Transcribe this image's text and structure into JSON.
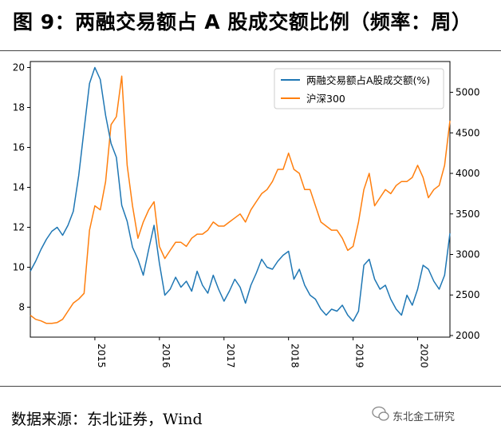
{
  "header": {
    "title": "图 9：两融交易额占 A 股成交额比例（频率：周）"
  },
  "footer": {
    "source": "数据来源：东北证券，Wind",
    "watermark": "东北金工研究"
  },
  "chart_data": {
    "type": "line",
    "x": [
      "2014-01",
      "2014-02",
      "2014-03",
      "2014-04",
      "2014-05",
      "2014-06",
      "2014-07",
      "2014-08",
      "2014-09",
      "2014-10",
      "2014-11",
      "2014-12",
      "2015-01",
      "2015-02",
      "2015-03",
      "2015-04",
      "2015-05",
      "2015-06",
      "2015-07",
      "2015-08",
      "2015-09",
      "2015-10",
      "2015-11",
      "2015-12",
      "2016-01",
      "2016-02",
      "2016-03",
      "2016-04",
      "2016-05",
      "2016-06",
      "2016-07",
      "2016-08",
      "2016-09",
      "2016-10",
      "2016-11",
      "2016-12",
      "2017-01",
      "2017-02",
      "2017-03",
      "2017-04",
      "2017-05",
      "2017-06",
      "2017-07",
      "2017-08",
      "2017-09",
      "2017-10",
      "2017-11",
      "2017-12",
      "2018-01",
      "2018-02",
      "2018-03",
      "2018-04",
      "2018-05",
      "2018-06",
      "2018-07",
      "2018-08",
      "2018-09",
      "2018-10",
      "2018-11",
      "2018-12",
      "2019-01",
      "2019-02",
      "2019-03",
      "2019-04",
      "2019-05",
      "2019-06",
      "2019-07",
      "2019-08",
      "2019-09",
      "2019-10",
      "2019-11",
      "2019-12",
      "2020-01",
      "2020-02",
      "2020-03",
      "2020-04",
      "2020-05",
      "2020-06",
      "2020-07"
    ],
    "series": [
      {
        "name": "两融交易额占A股成交额(%)",
        "axis": "left",
        "color": "#1f77b4",
        "values": [
          9.8,
          10.3,
          10.9,
          11.4,
          11.8,
          12.0,
          11.6,
          12.1,
          12.8,
          14.6,
          16.9,
          19.2,
          20.0,
          19.4,
          17.6,
          16.2,
          15.5,
          13.1,
          12.3,
          11.0,
          10.4,
          9.6,
          10.9,
          12.1,
          10.2,
          8.6,
          8.9,
          9.5,
          9.0,
          9.3,
          8.8,
          9.8,
          9.1,
          8.7,
          9.6,
          8.9,
          8.3,
          8.8,
          9.4,
          9.0,
          8.2,
          9.1,
          9.7,
          10.4,
          10.0,
          9.9,
          10.3,
          10.6,
          10.8,
          9.4,
          9.9,
          9.1,
          8.6,
          8.4,
          7.9,
          7.6,
          7.9,
          7.8,
          8.1,
          7.6,
          7.3,
          7.8,
          10.1,
          10.4,
          9.4,
          8.9,
          9.1,
          8.4,
          7.9,
          7.6,
          8.6,
          8.1,
          8.9,
          10.1,
          9.9,
          9.3,
          8.9,
          9.6,
          11.7
        ]
      },
      {
        "name": "沪深300",
        "axis": "right",
        "color": "#ff7f0e",
        "values": [
          2250,
          2200,
          2180,
          2150,
          2150,
          2160,
          2200,
          2300,
          2400,
          2450,
          2520,
          3300,
          3600,
          3550,
          3900,
          4600,
          4700,
          5200,
          4100,
          3600,
          3200,
          3400,
          3550,
          3650,
          3100,
          2950,
          3050,
          3150,
          3150,
          3100,
          3200,
          3250,
          3250,
          3300,
          3400,
          3350,
          3350,
          3400,
          3450,
          3500,
          3400,
          3550,
          3650,
          3750,
          3800,
          3900,
          4050,
          4050,
          4250,
          4050,
          4000,
          3800,
          3800,
          3600,
          3400,
          3350,
          3300,
          3300,
          3200,
          3050,
          3100,
          3400,
          3800,
          4000,
          3600,
          3700,
          3800,
          3750,
          3850,
          3900,
          3900,
          3950,
          4100,
          3950,
          3700,
          3800,
          3850,
          4100,
          4650
        ]
      }
    ],
    "xticks": [
      "2015",
      "2016",
      "2017",
      "2018",
      "2019",
      "2020"
    ],
    "yticks_left": [
      8,
      10,
      12,
      14,
      16,
      18,
      20
    ],
    "yticks_right": [
      2000,
      2500,
      3000,
      3500,
      4000,
      4500,
      5000
    ],
    "ylim_left": [
      6.5,
      20.3
    ],
    "ylim_right": [
      1980,
      5380
    ],
    "grid": false,
    "legend": "top-right"
  }
}
